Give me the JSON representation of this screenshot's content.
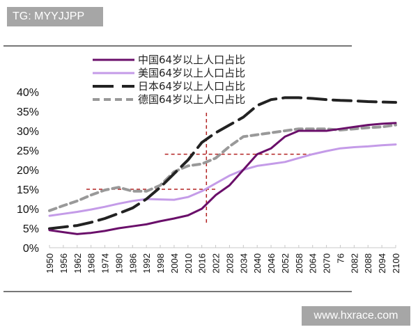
{
  "badges": {
    "top_left": "TG: MYYJJPP",
    "bottom_right": "www.hxrace.com"
  },
  "chart_data": {
    "type": "line",
    "title": "",
    "xlabel": "",
    "ylabel": "",
    "ylim": [
      0,
      40
    ],
    "y_ticks": [
      "0%",
      "5%",
      "10%",
      "15%",
      "20%",
      "25%",
      "30%",
      "35%",
      "40%"
    ],
    "x_ticks": [
      "1950",
      "1956",
      "1962",
      "1968",
      "1974",
      "1980",
      "1986",
      "1992",
      "1998",
      "2004",
      "2010",
      "2016",
      "2022",
      "2028",
      "2034",
      "2040",
      "2046",
      "2052",
      "2058",
      "2064",
      "2070",
      "76",
      "2082",
      "2088",
      "2094",
      "2100"
    ],
    "grid": false,
    "legend_position": "top",
    "x": [
      1950,
      1956,
      1962,
      1968,
      1974,
      1980,
      1986,
      1992,
      1998,
      2004,
      2010,
      2016,
      2022,
      2028,
      2034,
      2040,
      2046,
      2052,
      2058,
      2064,
      2070,
      2076,
      2082,
      2088,
      2094,
      2100
    ],
    "series": [
      {
        "name": "中国64岁以上人口占比",
        "color": "#6a0f6a",
        "style": "solid",
        "values": [
          4.5,
          4.0,
          3.5,
          3.8,
          4.3,
          5.0,
          5.5,
          6.0,
          6.8,
          7.5,
          8.3,
          10.0,
          13.5,
          16.0,
          20.0,
          24.0,
          25.5,
          28.5,
          30.0,
          30.0,
          30.0,
          30.5,
          31.0,
          31.5,
          31.8,
          32.0
        ]
      },
      {
        "name": "美国64岁以上人口占比",
        "color": "#c49be8",
        "style": "solid",
        "values": [
          8.2,
          8.7,
          9.2,
          9.8,
          10.5,
          11.3,
          12.0,
          12.5,
          12.4,
          12.3,
          13.0,
          14.5,
          16.5,
          18.5,
          20.0,
          21.0,
          21.5,
          22.0,
          23.0,
          24.0,
          24.8,
          25.5,
          25.8,
          26.0,
          26.3,
          26.5
        ]
      },
      {
        "name": "日本64岁以上人口占比",
        "color": "#222222",
        "style": "long-dash",
        "values": [
          4.9,
          5.3,
          5.7,
          6.5,
          7.5,
          8.8,
          10.2,
          12.5,
          15.5,
          19.0,
          22.5,
          27.0,
          29.5,
          31.5,
          33.5,
          36.5,
          38.0,
          38.5,
          38.5,
          38.3,
          38.0,
          37.8,
          37.7,
          37.5,
          37.4,
          37.3
        ]
      },
      {
        "name": "德国64岁以上人口占比",
        "color": "#999999",
        "style": "short-dash",
        "values": [
          9.5,
          10.8,
          12.0,
          13.5,
          14.8,
          15.5,
          14.5,
          14.5,
          16.0,
          19.5,
          21.0,
          21.5,
          23.0,
          26.0,
          28.5,
          29.0,
          29.5,
          30.0,
          30.5,
          30.5,
          30.5,
          30.2,
          30.5,
          30.8,
          31.0,
          31.5
        ]
      }
    ],
    "annotations": [
      {
        "type": "vline",
        "x": 2018,
        "color": "#b22222",
        "style": "dashed"
      },
      {
        "type": "hline",
        "y": 15,
        "x_range": [
          1966,
          2022
        ],
        "color": "#b22222",
        "style": "dashed"
      },
      {
        "type": "hline",
        "y": 24,
        "x_range": [
          2000,
          2064
        ],
        "color": "#b22222",
        "style": "dashed"
      }
    ]
  }
}
